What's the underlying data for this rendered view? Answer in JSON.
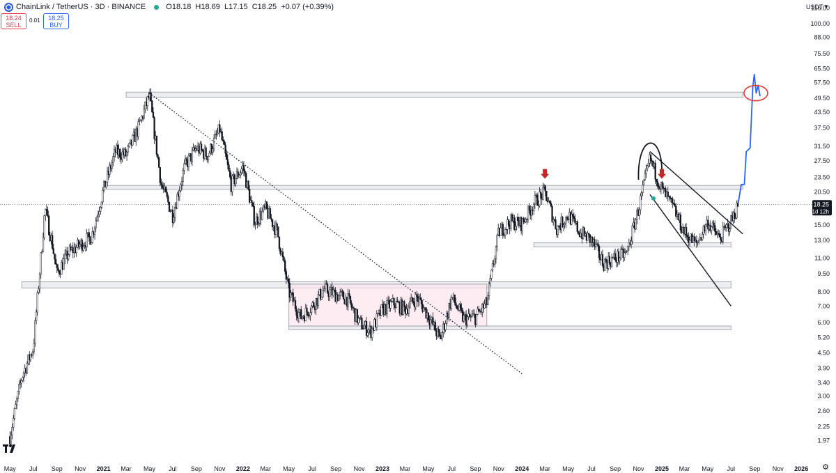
{
  "header": {
    "symbol": "ChainLink / TetherUS · 3D · BINANCE",
    "open": "O18.18",
    "high": "H18.69",
    "low": "L17.15",
    "close": "C18.25",
    "change": "+0.07 (+0.39%)"
  },
  "trade": {
    "sell_price": "18.24",
    "sell_label": "SELL",
    "spread": "0.01",
    "buy_price": "18.25",
    "buy_label": "BUY"
  },
  "currency": "USDT",
  "colors": {
    "candle": "#131722",
    "zone": "#e0e3eb",
    "range_box": "#fce4ec",
    "arrow": "#c62828",
    "projection": "#2962ff",
    "circle": "#e53935",
    "last_price_label": "#131722",
    "ema_marker": "#26a69a"
  },
  "chart_data": {
    "type": "candlestick",
    "y_scale": "log",
    "ylim": [
      1.7,
      125
    ],
    "y_ticks": [
      1.97,
      2.25,
      2.6,
      3.0,
      3.4,
      3.9,
      4.5,
      5.2,
      6.0,
      7.0,
      8.0,
      9.5,
      11.0,
      13.0,
      15.0,
      17.5,
      20.5,
      23.5,
      27.5,
      31.5,
      37.5,
      43.5,
      49.5,
      57.5,
      65.5,
      75.5,
      88.0,
      100.0,
      116.0
    ],
    "y_tick_labels": [
      "1.97",
      "2.25",
      "2.60",
      "3.00",
      "3.40",
      "3.90",
      "4.50",
      "5.20",
      "6.00",
      "7.00",
      "8.00",
      "9.50",
      "11.00",
      "13.00",
      "15.00",
      "17.50",
      "20.50",
      "23.50",
      "27.50",
      "31.50",
      "37.50",
      "43.50",
      "49.50",
      "57.50",
      "65.50",
      "75.50",
      "88.00",
      "100.00",
      "116.00"
    ],
    "x_ticks": [
      {
        "t": "2020-05",
        "label": "May"
      },
      {
        "t": "2020-07",
        "label": "Jul"
      },
      {
        "t": "2020-09",
        "label": "Sep"
      },
      {
        "t": "2020-11",
        "label": "Nov"
      },
      {
        "t": "2021-01",
        "label": "2021"
      },
      {
        "t": "2021-03",
        "label": "Mar"
      },
      {
        "t": "2021-05",
        "label": "May"
      },
      {
        "t": "2021-07",
        "label": "Jul"
      },
      {
        "t": "2021-09",
        "label": "Sep"
      },
      {
        "t": "2021-11",
        "label": "Nov"
      },
      {
        "t": "2022-01",
        "label": "2022"
      },
      {
        "t": "2022-03",
        "label": "Mar"
      },
      {
        "t": "2022-05",
        "label": "May"
      },
      {
        "t": "2022-07",
        "label": "Jul"
      },
      {
        "t": "2022-09",
        "label": "Sep"
      },
      {
        "t": "2022-11",
        "label": "Nov"
      },
      {
        "t": "2023-01",
        "label": "2023"
      },
      {
        "t": "2023-03",
        "label": "Mar"
      },
      {
        "t": "2023-05",
        "label": "May"
      },
      {
        "t": "2023-07",
        "label": "Jul"
      },
      {
        "t": "2023-09",
        "label": "Sep"
      },
      {
        "t": "2023-11",
        "label": "Nov"
      },
      {
        "t": "2024-01",
        "label": "2024"
      },
      {
        "t": "2024-03",
        "label": "Mar"
      },
      {
        "t": "2024-05",
        "label": "May"
      },
      {
        "t": "2024-07",
        "label": "Jul"
      },
      {
        "t": "2024-09",
        "label": "Sep"
      },
      {
        "t": "2024-11",
        "label": "Nov"
      },
      {
        "t": "2025-01",
        "label": "2025"
      },
      {
        "t": "2025-03",
        "label": "Mar"
      },
      {
        "t": "2025-05",
        "label": "May"
      },
      {
        "t": "2025-07",
        "label": "Jul"
      },
      {
        "t": "2025-09",
        "label": "Sep"
      },
      {
        "t": "2025-11",
        "label": "Nov"
      },
      {
        "t": "2026-01",
        "label": "2026"
      }
    ],
    "price_path": [
      [
        "2020-05",
        2.05
      ],
      [
        "2020-06",
        3.6
      ],
      [
        "2020-07",
        4.7
      ],
      [
        "2020-08",
        17.5
      ],
      [
        "2020-08-20",
        12.5
      ],
      [
        "2020-09",
        9.5
      ],
      [
        "2020-10",
        11.5
      ],
      [
        "2020-11",
        12.5
      ],
      [
        "2020-12",
        13.5
      ],
      [
        "2021-01",
        21.0
      ],
      [
        "2021-02",
        30.0
      ],
      [
        "2021-03",
        29.0
      ],
      [
        "2021-04",
        37.0
      ],
      [
        "2021-05",
        51.0
      ],
      [
        "2021-06",
        22.0
      ],
      [
        "2021-07",
        16.5
      ],
      [
        "2021-08",
        26.0
      ],
      [
        "2021-09",
        31.0
      ],
      [
        "2021-10",
        29.0
      ],
      [
        "2021-11",
        37.0
      ],
      [
        "2021-12",
        22.0
      ],
      [
        "2022-01",
        26.0
      ],
      [
        "2022-02",
        15.5
      ],
      [
        "2022-03",
        17.5
      ],
      [
        "2022-04",
        14.0
      ],
      [
        "2022-05",
        8.0
      ],
      [
        "2022-06",
        6.3
      ],
      [
        "2022-07",
        7.0
      ],
      [
        "2022-08",
        8.2
      ],
      [
        "2022-09",
        7.8
      ],
      [
        "2022-10",
        7.5
      ],
      [
        "2022-11",
        6.0
      ],
      [
        "2022-12",
        5.5
      ],
      [
        "2023-01",
        6.8
      ],
      [
        "2023-02",
        7.2
      ],
      [
        "2023-03",
        6.8
      ],
      [
        "2023-04",
        7.6
      ],
      [
        "2023-05",
        6.4
      ],
      [
        "2023-06",
        5.1
      ],
      [
        "2023-07",
        7.6
      ],
      [
        "2023-08",
        6.2
      ],
      [
        "2023-09",
        6.3
      ],
      [
        "2023-10",
        7.2
      ],
      [
        "2023-11",
        14.0
      ],
      [
        "2023-12",
        15.5
      ],
      [
        "2024-01",
        15.2
      ],
      [
        "2024-02",
        18.5
      ],
      [
        "2024-03",
        20.5
      ],
      [
        "2024-04",
        14.5
      ],
      [
        "2024-05",
        16.5
      ],
      [
        "2024-06",
        14.0
      ],
      [
        "2024-07",
        13.0
      ],
      [
        "2024-08",
        10.5
      ],
      [
        "2024-09",
        11.0
      ],
      [
        "2024-10",
        11.5
      ],
      [
        "2024-11",
        17.5
      ],
      [
        "2024-12",
        28.0
      ],
      [
        "2025-01",
        21.0
      ],
      [
        "2025-02",
        17.5
      ],
      [
        "2025-03",
        14.0
      ],
      [
        "2025-04",
        12.5
      ],
      [
        "2025-05",
        15.5
      ],
      [
        "2025-06",
        13.2
      ],
      [
        "2025-07",
        15.5
      ],
      [
        "2025-07-20",
        18.25
      ]
    ],
    "last_price": 18.25,
    "last_price_label": "18.25",
    "countdown_label": "1d 12h",
    "annotations": {
      "horizontal_zones": [
        {
          "from": "2021-03",
          "to": "2025-08",
          "low": 50.0,
          "high": 52.5
        },
        {
          "from": "2021-01",
          "to": "2025-08",
          "low": 21.0,
          "high": 21.8
        },
        {
          "from": "2024-02",
          "to": "2025-07",
          "low": 12.2,
          "high": 12.7
        },
        {
          "from": "2020-06",
          "to": "2025-07",
          "low": 8.3,
          "high": 8.8
        },
        {
          "from": "2022-05",
          "to": "2025-07",
          "low": 5.6,
          "high": 5.8
        }
      ],
      "range_box": {
        "from": "2022-05",
        "to": "2023-10",
        "low": 5.8,
        "high": 8.6
      },
      "downtrend_line": {
        "from": [
          "2021-05",
          52.0
        ],
        "to": [
          "2024-01",
          3.7
        ]
      },
      "wedge_upper": {
        "from": [
          "2024-12",
          30.0
        ],
        "to": [
          "2025-08",
          13.8
        ]
      },
      "wedge_lower": {
        "from": [
          "2024-12",
          20.0
        ],
        "to": [
          "2025-07",
          7.0
        ]
      },
      "arc": {
        "from": [
          "2024-11",
          23.0
        ],
        "peak": [
          "2024-12-15",
          33.0
        ],
        "to": [
          "2025-01",
          24.0
        ]
      },
      "down_arrows": [
        [
          "2024-03",
          23.2
        ],
        [
          "2025-01",
          23.2
        ]
      ],
      "projection_path": [
        [
          "2025-07-20",
          18.5
        ],
        [
          "2025-07-28",
          22.0
        ],
        [
          "2025-08-05",
          22.0
        ],
        [
          "2025-08-10",
          30.0
        ],
        [
          "2025-08-20",
          31.0
        ],
        [
          "2025-08-27",
          55.0
        ],
        [
          "2025-08-31",
          62.0
        ],
        [
          "2025-09-05",
          52.0
        ],
        [
          "2025-09-10",
          56.0
        ],
        [
          "2025-09-15",
          50.5
        ]
      ],
      "target_circle": {
        "center": [
          "2025-09-04",
          52.0
        ]
      }
    }
  }
}
